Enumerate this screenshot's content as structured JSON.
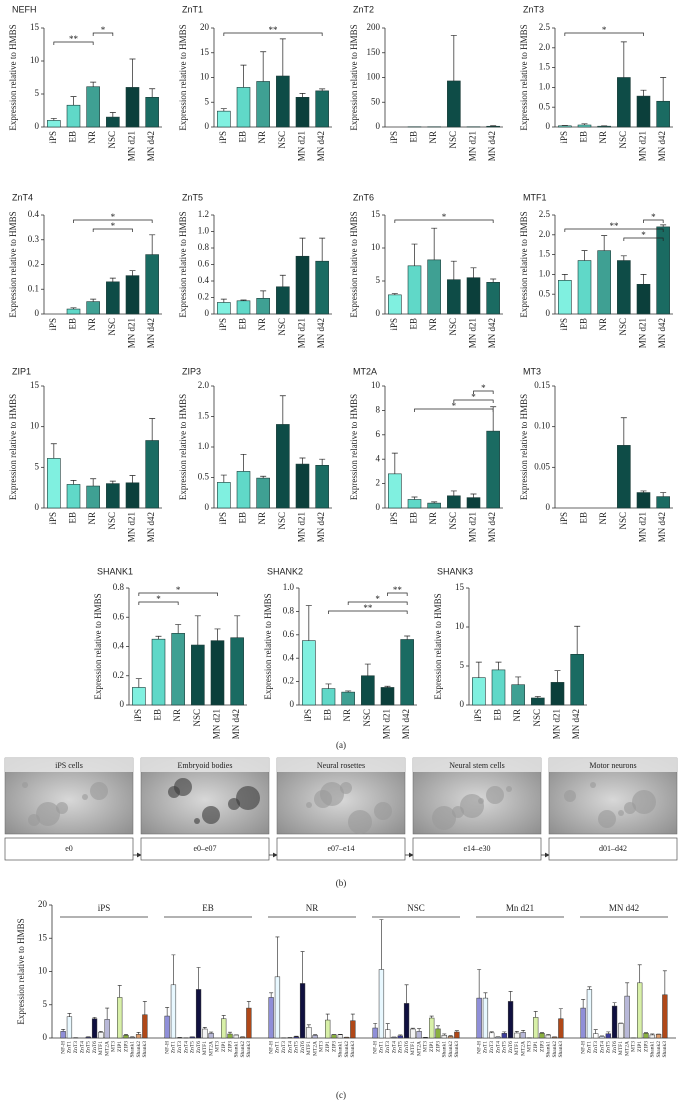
{
  "panel_labels": [
    "(a)",
    "(b)",
    "(c)"
  ],
  "panel_b": {
    "images": [
      {
        "title": "iPS cells",
        "stage": "e0"
      },
      {
        "title": "Embryoid bodies",
        "stage": "e0–e07"
      },
      {
        "title": "Neural rosettes",
        "stage": "e07–e14"
      },
      {
        "title": "Neural stem cells",
        "stage": "e14–e30"
      },
      {
        "title": "Motor neurons",
        "stage": "d01–d42"
      }
    ]
  },
  "chart_data": [
    {
      "type": "bar",
      "title": "NEFH",
      "ylabel": "Expression relative to HMBS",
      "categories": [
        "iPS",
        "EB",
        "NR",
        "NSC",
        "MN d21",
        "MN d42"
      ],
      "values": [
        1.0,
        3.3,
        6.1,
        1.5,
        6.0,
        4.5
      ],
      "errors": [
        0.3,
        1.3,
        0.7,
        0.7,
        4.3,
        1.3
      ],
      "colors": [
        "#80f0e0",
        "#60d8c8",
        "#3fa093",
        "#0e4c47",
        "#0b3f3b",
        "#1a6b62"
      ],
      "ylim": [
        0,
        15
      ],
      "yticks": [
        0,
        5,
        10,
        15
      ],
      "annotations": [
        {
          "label": "*",
          "from": "NR",
          "to": "NSC"
        },
        {
          "label": "**",
          "from": "iPS",
          "to": "NR"
        }
      ]
    },
    {
      "type": "bar",
      "title": "ZnT1",
      "ylabel": "Expression relative to HMBS",
      "categories": [
        "iPS",
        "EB",
        "NR",
        "NSC",
        "MN d21",
        "MN d42"
      ],
      "values": [
        3.2,
        8.0,
        9.2,
        10.3,
        6.0,
        7.3
      ],
      "errors": [
        0.5,
        4.5,
        6.0,
        7.5,
        0.8,
        0.4
      ],
      "colors": [
        "#80f0e0",
        "#60d8c8",
        "#3fa093",
        "#0e4c47",
        "#0b3f3b",
        "#1a6b62"
      ],
      "ylim": [
        0,
        20
      ],
      "yticks": [
        0,
        5,
        10,
        15,
        20
      ],
      "annotations": [
        {
          "label": "**",
          "from": "iPS",
          "to": "MN d42"
        }
      ]
    },
    {
      "type": "bar",
      "title": "ZnT2",
      "ylabel": "Expression relative to HMBS",
      "categories": [
        "iPS",
        "EB",
        "NR",
        "NSC",
        "MN d21",
        "MN d42"
      ],
      "values": [
        0,
        0.5,
        0.5,
        93,
        0.5,
        1.5
      ],
      "errors": [
        0,
        0,
        0,
        92,
        0,
        1
      ],
      "colors": [
        "#80f0e0",
        "#60d8c8",
        "#3fa093",
        "#0e4c47",
        "#0b3f3b",
        "#1a6b62"
      ],
      "ylim": [
        0,
        200
      ],
      "yticks": [
        0,
        50,
        100,
        150,
        200
      ],
      "annotations": []
    },
    {
      "type": "bar",
      "title": "ZnT3",
      "ylabel": "Expression relative to HMBS",
      "categories": [
        "iPS",
        "EB",
        "NR",
        "NSC",
        "MN d21",
        "MN d42"
      ],
      "values": [
        0.03,
        0.05,
        0.02,
        1.25,
        0.78,
        0.65
      ],
      "errors": [
        0.01,
        0.03,
        0.01,
        0.9,
        0.15,
        0.6
      ],
      "colors": [
        "#80f0e0",
        "#60d8c8",
        "#3fa093",
        "#0e4c47",
        "#0b3f3b",
        "#1a6b62"
      ],
      "ylim": [
        0,
        2.5
      ],
      "yticks": [
        0,
        0.5,
        {
          "value": 1,
          "label": "1.0"
        },
        1.5,
        {
          "value": 2,
          "label": "2.0"
        },
        2.5
      ],
      "annotations": [
        {
          "label": "*",
          "from": "iPS",
          "to": "MN d21"
        }
      ]
    },
    {
      "type": "bar",
      "title": "ZnT4",
      "ylabel": "Expression relative to HMBS",
      "categories": [
        "iPS",
        "EB",
        "NR",
        "NSC",
        "MN d21",
        "MN d42"
      ],
      "values": [
        0,
        0.02,
        0.05,
        0.13,
        0.155,
        0.24
      ],
      "errors": [
        0,
        0.005,
        0.01,
        0.015,
        0.02,
        0.08
      ],
      "colors": [
        "#80f0e0",
        "#60d8c8",
        "#3fa093",
        "#0e4c47",
        "#0b3f3b",
        "#1a6b62"
      ],
      "ylim": [
        0,
        0.4
      ],
      "yticks": [
        0,
        0.1,
        0.2,
        0.3,
        0.4
      ],
      "annotations": [
        {
          "label": "*",
          "from": "EB",
          "to": "MN d42"
        },
        {
          "label": "*",
          "from": "NR",
          "to": "MN d21"
        }
      ]
    },
    {
      "type": "bar",
      "title": "ZnT5",
      "ylabel": "Expression relative to HMBS",
      "categories": [
        "iPS",
        "EB",
        "NR",
        "NSC",
        "MN d21",
        "MN d42"
      ],
      "values": [
        0.14,
        0.16,
        0.19,
        0.33,
        0.7,
        0.64
      ],
      "errors": [
        0.04,
        0.01,
        0.09,
        0.14,
        0.22,
        0.28
      ],
      "colors": [
        "#80f0e0",
        "#60d8c8",
        "#3fa093",
        "#0e4c47",
        "#0b3f3b",
        "#1a6b62"
      ],
      "ylim": [
        0,
        1.2
      ],
      "yticks": [
        0,
        0.2,
        0.4,
        0.6,
        0.8,
        {
          "value": 1,
          "label": "1.0"
        },
        1.2
      ],
      "annotations": []
    },
    {
      "type": "bar",
      "title": "ZnT6",
      "ylabel": "Expression relative to HMBS",
      "categories": [
        "iPS",
        "EB",
        "NR",
        "NSC",
        "MN d21",
        "MN d42"
      ],
      "values": [
        2.9,
        7.3,
        8.2,
        5.2,
        5.5,
        4.8
      ],
      "errors": [
        0.2,
        3.3,
        4.8,
        2.8,
        1.5,
        0.5
      ],
      "colors": [
        "#80f0e0",
        "#60d8c8",
        "#3fa093",
        "#0e4c47",
        "#0b3f3b",
        "#1a6b62"
      ],
      "ylim": [
        0,
        15
      ],
      "yticks": [
        0,
        5,
        10,
        15
      ],
      "annotations": [
        {
          "label": "*",
          "from": "iPS",
          "to": "MN d42"
        }
      ]
    },
    {
      "type": "bar",
      "title": "MTF1",
      "ylabel": "Expression relative to HMBS",
      "categories": [
        "iPS",
        "EB",
        "NR",
        "NSC",
        "MN d21",
        "MN d42"
      ],
      "values": [
        0.85,
        1.35,
        1.6,
        1.35,
        0.75,
        2.2
      ],
      "errors": [
        0.15,
        0.25,
        0.38,
        0.12,
        0.25,
        0.05
      ],
      "colors": [
        "#80f0e0",
        "#60d8c8",
        "#3fa093",
        "#0e4c47",
        "#0b3f3b",
        "#1a6b62"
      ],
      "ylim": [
        0,
        2.5
      ],
      "yticks": [
        0,
        0.5,
        {
          "value": 1,
          "label": "1.0"
        },
        1.5,
        {
          "value": 2,
          "label": "2.0"
        },
        2.5
      ],
      "annotations": [
        {
          "label": "*",
          "from": "MN d21",
          "to": "MN d42"
        },
        {
          "label": "**",
          "from": "iPS",
          "to": "MN d42"
        },
        {
          "label": "*",
          "from": "NSC",
          "to": "MN d42"
        }
      ]
    },
    {
      "type": "bar",
      "title": "ZIP1",
      "ylabel": "Expression relative to HMBS",
      "categories": [
        "iPS",
        "EB",
        "NR",
        "NSC",
        "MN d21",
        "MN d42"
      ],
      "values": [
        6.1,
        2.9,
        2.7,
        3.0,
        3.1,
        8.3
      ],
      "errors": [
        1.8,
        0.5,
        0.9,
        0.3,
        0.9,
        2.7
      ],
      "colors": [
        "#80f0e0",
        "#60d8c8",
        "#3fa093",
        "#0e4c47",
        "#0b3f3b",
        "#1a6b62"
      ],
      "ylim": [
        0,
        15
      ],
      "yticks": [
        0,
        5,
        10,
        15
      ],
      "annotations": []
    },
    {
      "type": "bar",
      "title": "ZIP3",
      "ylabel": "Expression relative to HMBS",
      "categories": [
        "iPS",
        "EB",
        "NR",
        "NSC",
        "MN d21",
        "MN d42"
      ],
      "values": [
        0.42,
        0.6,
        0.49,
        1.37,
        0.72,
        0.7
      ],
      "errors": [
        0.12,
        0.28,
        0.03,
        0.47,
        0.1,
        0.1
      ],
      "colors": [
        "#80f0e0",
        "#60d8c8",
        "#3fa093",
        "#0e4c47",
        "#0b3f3b",
        "#1a6b62"
      ],
      "ylim": [
        0,
        2
      ],
      "yticks": [
        0,
        0.5,
        {
          "value": 1,
          "label": "1.0"
        },
        1.5,
        {
          "value": 2,
          "label": "2.0"
        }
      ],
      "annotations": []
    },
    {
      "type": "bar",
      "title": "MT2A",
      "ylabel": "Expression relative to HMBS",
      "categories": [
        "iPS",
        "EB",
        "NR",
        "NSC",
        "MN d21",
        "MN d42"
      ],
      "values": [
        2.8,
        0.7,
        0.4,
        1.0,
        0.85,
        6.3
      ],
      "errors": [
        1.7,
        0.2,
        0.1,
        0.4,
        0.3,
        2.0
      ],
      "colors": [
        "#80f0e0",
        "#60d8c8",
        "#3fa093",
        "#0e4c47",
        "#0b3f3b",
        "#1a6b62"
      ],
      "ylim": [
        0,
        10
      ],
      "yticks": [
        0,
        2,
        4,
        6,
        8,
        10
      ],
      "annotations": [
        {
          "label": "*",
          "from": "MN d21",
          "to": "MN d42"
        },
        {
          "label": "*",
          "from": "NSC",
          "to": "MN d42"
        },
        {
          "label": "*",
          "from": "EB",
          "to": "MN d42"
        }
      ]
    },
    {
      "type": "bar",
      "title": "MT3",
      "ylabel": "Expression relative to HMBS",
      "categories": [
        "iPS",
        "EB",
        "NR",
        "NSC",
        "MN d21",
        "MN d42"
      ],
      "values": [
        0,
        0,
        0,
        0.077,
        0.019,
        0.014
      ],
      "errors": [
        0,
        0,
        0,
        0.034,
        0.002,
        0.005
      ],
      "colors": [
        "#80f0e0",
        "#60d8c8",
        "#3fa093",
        "#0e4c47",
        "#0b3f3b",
        "#1a6b62"
      ],
      "ylim": [
        0,
        0.15
      ],
      "yticks": [
        0,
        0.05,
        {
          "value": 0.1,
          "label": "0.10"
        },
        0.15
      ],
      "annotations": []
    },
    {
      "type": "bar",
      "title": "SHANK1",
      "ylabel": "Expression relative to HMBS",
      "categories": [
        "iPS",
        "EB",
        "NR",
        "NSC",
        "MN d21",
        "MN d42"
      ],
      "values": [
        0.12,
        0.45,
        0.49,
        0.41,
        0.44,
        0.46
      ],
      "errors": [
        0.06,
        0.02,
        0.06,
        0.2,
        0.08,
        0.15
      ],
      "colors": [
        "#80f0e0",
        "#60d8c8",
        "#3fa093",
        "#0e4c47",
        "#0b3f3b",
        "#1a6b62"
      ],
      "ylim": [
        0,
        0.8
      ],
      "yticks": [
        0,
        0.2,
        0.4,
        0.6,
        0.8
      ],
      "annotations": [
        {
          "label": "*",
          "from": "iPS",
          "to": "MN d21"
        },
        {
          "label": "*",
          "from": "iPS",
          "to": "NR"
        }
      ]
    },
    {
      "type": "bar",
      "title": "SHANK2",
      "ylabel": "Expression relative to HMBS",
      "categories": [
        "iPS",
        "EB",
        "NR",
        "NSC",
        "MN d21",
        "MN d42"
      ],
      "values": [
        0.55,
        0.14,
        0.11,
        0.25,
        0.15,
        0.56
      ],
      "errors": [
        0.3,
        0.04,
        0.01,
        0.1,
        0.01,
        0.03
      ],
      "colors": [
        "#80f0e0",
        "#60d8c8",
        "#3fa093",
        "#0e4c47",
        "#0b3f3b",
        "#1a6b62"
      ],
      "ylim": [
        0,
        1
      ],
      "yticks": [
        0,
        0.2,
        0.4,
        0.6,
        0.8,
        {
          "value": 1,
          "label": "1.0"
        }
      ],
      "annotations": [
        {
          "label": "**",
          "from": "MN d21",
          "to": "MN d42"
        },
        {
          "label": "*",
          "from": "NR",
          "to": "MN d42"
        },
        {
          "label": "**",
          "from": "EB",
          "to": "MN d42"
        }
      ]
    },
    {
      "type": "bar",
      "title": "SHANK3",
      "ylabel": "Expression relative to HMBS",
      "categories": [
        "iPS",
        "EB",
        "NR",
        "NSC",
        "MN d21",
        "MN d42"
      ],
      "values": [
        3.5,
        4.5,
        2.6,
        0.9,
        2.9,
        6.5
      ],
      "errors": [
        2.0,
        1.0,
        1.0,
        0.2,
        1.5,
        3.6
      ],
      "colors": [
        "#80f0e0",
        "#60d8c8",
        "#3fa093",
        "#0e4c47",
        "#0b3f3b",
        "#1a6b62"
      ],
      "ylim": [
        0,
        15
      ],
      "yticks": [
        0,
        5,
        10,
        15
      ],
      "annotations": []
    },
    {
      "type": "grouped_bar",
      "ylabel": "Expression relative to HMBS",
      "categories": [
        "iPS",
        "EB",
        "NR",
        "NSC",
        "Mn d21",
        "MN d42"
      ],
      "ylim": [
        0,
        20
      ],
      "yticks": [
        0,
        5,
        10,
        15,
        20
      ],
      "series": [
        {
          "name": "NF-H",
          "color": "#8f8fd8",
          "values": [
            1.0,
            3.3,
            6.1,
            1.5,
            6.0,
            4.5
          ],
          "errors": [
            0.3,
            1.3,
            0.7,
            0.7,
            4.3,
            1.3
          ]
        },
        {
          "name": "ZnT1",
          "color": "#e8f8ff",
          "values": [
            3.2,
            8.0,
            9.2,
            10.3,
            6.0,
            7.3
          ],
          "errors": [
            0.5,
            4.5,
            6.0,
            7.5,
            0.8,
            0.4
          ]
        },
        {
          "name": "ZnT3",
          "color": "#ffffff",
          "values": [
            0.03,
            0.05,
            0.02,
            1.25,
            0.78,
            0.65
          ],
          "errors": [
            0.01,
            0.03,
            0.01,
            0.9,
            0.15,
            0.6
          ]
        },
        {
          "name": "ZnT4",
          "color": "#dfe8ff",
          "values": [
            0,
            0.02,
            0.05,
            0.13,
            0.155,
            0.24
          ],
          "errors": [
            0,
            0.005,
            0.01,
            0.015,
            0.02,
            0.08
          ]
        },
        {
          "name": "ZnT5",
          "color": "#3c3c9c",
          "values": [
            0.14,
            0.16,
            0.19,
            0.33,
            0.7,
            0.64
          ],
          "errors": [
            0.04,
            0.01,
            0.09,
            0.14,
            0.22,
            0.28
          ]
        },
        {
          "name": "ZnT6",
          "color": "#101040",
          "values": [
            2.9,
            7.3,
            8.2,
            5.2,
            5.5,
            4.8
          ],
          "errors": [
            0.2,
            3.3,
            4.8,
            2.8,
            1.5,
            0.5
          ]
        },
        {
          "name": "MTF1",
          "color": "#f4f4f4",
          "values": [
            0.85,
            1.35,
            1.6,
            1.35,
            0.75,
            2.2
          ],
          "errors": [
            0.15,
            0.25,
            0.38,
            0.12,
            0.25,
            0.05
          ]
        },
        {
          "name": "MT2A",
          "color": "#b8b8d8",
          "values": [
            2.8,
            0.7,
            0.4,
            1.0,
            0.85,
            6.3
          ],
          "errors": [
            1.7,
            0.2,
            0.1,
            0.4,
            0.3,
            2.0
          ]
        },
        {
          "name": "MT3",
          "color": "#e8f0d8",
          "values": [
            0,
            0,
            0,
            0.077,
            0.019,
            0.014
          ],
          "errors": [
            0,
            0,
            0,
            0.034,
            0.002,
            0.005
          ]
        },
        {
          "name": "ZIP1",
          "color": "#d8f0a8",
          "values": [
            6.1,
            2.9,
            2.7,
            3.0,
            3.1,
            8.3
          ],
          "errors": [
            1.8,
            0.5,
            0.9,
            0.3,
            0.9,
            2.7
          ]
        },
        {
          "name": "ZIP3",
          "color": "#8ab040",
          "values": [
            0.42,
            0.6,
            0.49,
            1.37,
            0.72,
            0.7
          ],
          "errors": [
            0.12,
            0.28,
            0.03,
            0.47,
            0.1,
            0.1
          ]
        },
        {
          "name": "Shank1",
          "color": "#f0f0f0",
          "values": [
            0.12,
            0.45,
            0.49,
            0.41,
            0.44,
            0.46
          ],
          "errors": [
            0.06,
            0.02,
            0.06,
            0.2,
            0.08,
            0.15
          ]
        },
        {
          "name": "Shank2",
          "color": "#e0a070",
          "values": [
            0.55,
            0.14,
            0.11,
            0.25,
            0.15,
            0.56
          ],
          "errors": [
            0.3,
            0.04,
            0.01,
            0.1,
            0.01,
            0.03
          ]
        },
        {
          "name": "Shank3",
          "color": "#b04818",
          "values": [
            3.5,
            4.5,
            2.6,
            0.9,
            2.9,
            6.5
          ],
          "errors": [
            2.0,
            1.0,
            1.0,
            0.2,
            1.5,
            3.6
          ]
        }
      ]
    }
  ]
}
